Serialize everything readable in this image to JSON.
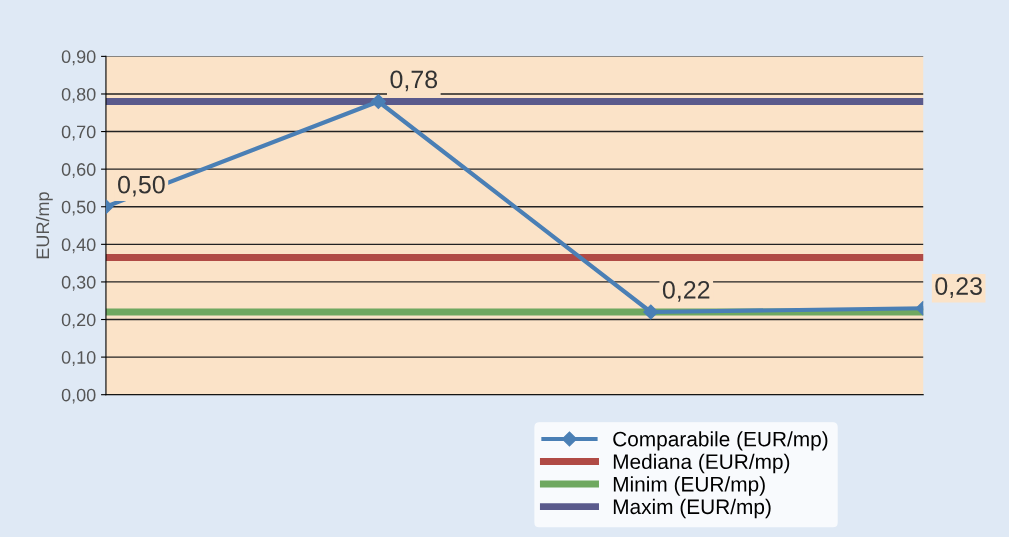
{
  "chart_data": {
    "type": "line",
    "ylabel": "EUR/mp",
    "categories": [
      null,
      null,
      null,
      null
    ],
    "series": [
      {
        "name": "Comparabile (EUR/mp)",
        "color": "#4a7fb5",
        "values": [
          0.5,
          0.78,
          0.22,
          0.23
        ],
        "marker": "diamond",
        "value_labels": [
          "0,50",
          "0,78",
          "0,22",
          "0,23"
        ]
      },
      {
        "name": "Mediana (EUR/mp)",
        "color": "#b04a45",
        "values": [
          0.365,
          0.365,
          0.365,
          0.365
        ],
        "marker": "none"
      },
      {
        "name": "Minim (EUR/mp)",
        "color": "#6fa860",
        "values": [
          0.22,
          0.22,
          0.22,
          0.22
        ],
        "marker": "none"
      },
      {
        "name": "Maxim (EUR/mp)",
        "color": "#5a5a8c",
        "values": [
          0.78,
          0.78,
          0.78,
          0.78
        ],
        "marker": "none"
      }
    ],
    "ylim": [
      0,
      0.9
    ],
    "yticks": [
      {
        "value": 0,
        "label": "0,00"
      },
      {
        "value": 0.1,
        "label": "0,10"
      },
      {
        "value": 0.2,
        "label": "0,20"
      },
      {
        "value": 0.3,
        "label": "0,30"
      },
      {
        "value": 0.4,
        "label": "0,40"
      },
      {
        "value": 0.5,
        "label": "0,50"
      },
      {
        "value": 0.6,
        "label": "0,60"
      },
      {
        "value": 0.7,
        "label": "0,70"
      },
      {
        "value": 0.8,
        "label": "0,80"
      },
      {
        "value": 0.9,
        "label": "0,90"
      }
    ],
    "grid": "y",
    "legend": "bottom right",
    "line_style": "solid"
  }
}
